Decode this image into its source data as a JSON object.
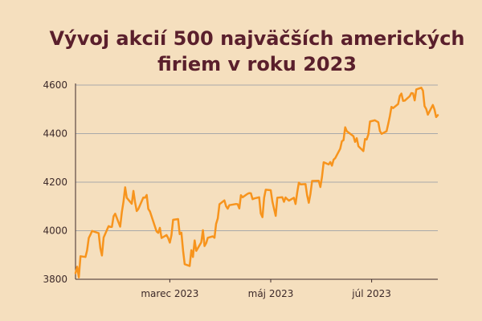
{
  "chart_data": {
    "type": "line",
    "title_lines": [
      "Vývoj akcií 500 najväčších amerických",
      "firiem v roku 2023"
    ],
    "xlabel": "",
    "ylabel": "",
    "ylim": [
      3800,
      4600
    ],
    "y_ticks": [
      3800,
      4000,
      4200,
      4400,
      4600
    ],
    "x_ticks": [
      {
        "date": "2023-03-01",
        "label": "marec 2023"
      },
      {
        "date": "2023-05-01",
        "label": "máj 2023"
      },
      {
        "date": "2023-07-01",
        "label": "júl 2023"
      }
    ],
    "xlim": [
      "2023-01-03",
      "2023-08-01"
    ],
    "grid": "horizontal",
    "line_color": "#f7941d",
    "series": [
      {
        "points": [
          [
            "2023-01-03",
            3825
          ],
          [
            "2023-01-04",
            3852
          ],
          [
            "2023-01-05",
            3808
          ],
          [
            "2023-01-06",
            3895
          ],
          [
            "2023-01-09",
            3892
          ],
          [
            "2023-01-10",
            3919
          ],
          [
            "2023-01-11",
            3970
          ],
          [
            "2023-01-12",
            3983
          ],
          [
            "2023-01-13",
            3999
          ],
          [
            "2023-01-17",
            3990
          ],
          [
            "2023-01-18",
            3928
          ],
          [
            "2023-01-19",
            3898
          ],
          [
            "2023-01-20",
            3972
          ],
          [
            "2023-01-23",
            4019
          ],
          [
            "2023-01-24",
            4016
          ],
          [
            "2023-01-25",
            4016
          ],
          [
            "2023-01-26",
            4060
          ],
          [
            "2023-01-27",
            4070
          ],
          [
            "2023-01-30",
            4017
          ],
          [
            "2023-01-31",
            4077
          ],
          [
            "2023-02-01",
            4119
          ],
          [
            "2023-02-02",
            4179
          ],
          [
            "2023-02-03",
            4136
          ],
          [
            "2023-02-06",
            4111
          ],
          [
            "2023-02-07",
            4164
          ],
          [
            "2023-02-08",
            4118
          ],
          [
            "2023-02-09",
            4081
          ],
          [
            "2023-02-10",
            4090
          ],
          [
            "2023-02-13",
            4137
          ],
          [
            "2023-02-14",
            4136
          ],
          [
            "2023-02-15",
            4147
          ],
          [
            "2023-02-16",
            4090
          ],
          [
            "2023-02-17",
            4079
          ],
          [
            "2023-02-21",
            3997
          ],
          [
            "2023-02-22",
            3991
          ],
          [
            "2023-02-23",
            4012
          ],
          [
            "2023-02-24",
            3970
          ],
          [
            "2023-02-27",
            3982
          ],
          [
            "2023-02-28",
            3970
          ],
          [
            "2023-03-01",
            3951
          ],
          [
            "2023-03-02",
            3981
          ],
          [
            "2023-03-03",
            4045
          ],
          [
            "2023-03-06",
            4048
          ],
          [
            "2023-03-07",
            3986
          ],
          [
            "2023-03-08",
            3992
          ],
          [
            "2023-03-09",
            3918
          ],
          [
            "2023-03-10",
            3862
          ],
          [
            "2023-03-13",
            3855
          ],
          [
            "2023-03-14",
            3920
          ],
          [
            "2023-03-15",
            3892
          ],
          [
            "2023-03-16",
            3960
          ],
          [
            "2023-03-17",
            3917
          ],
          [
            "2023-03-20",
            3952
          ],
          [
            "2023-03-21",
            4002
          ],
          [
            "2023-03-22",
            3937
          ],
          [
            "2023-03-23",
            3949
          ],
          [
            "2023-03-24",
            3971
          ],
          [
            "2023-03-27",
            3977
          ],
          [
            "2023-03-28",
            3971
          ],
          [
            "2023-03-29",
            4028
          ],
          [
            "2023-03-30",
            4051
          ],
          [
            "2023-03-31",
            4109
          ],
          [
            "2023-04-03",
            4125
          ],
          [
            "2023-04-04",
            4101
          ],
          [
            "2023-04-05",
            4091
          ],
          [
            "2023-04-06",
            4105
          ],
          [
            "2023-04-10",
            4110
          ],
          [
            "2023-04-11",
            4109
          ],
          [
            "2023-04-12",
            4092
          ],
          [
            "2023-04-13",
            4146
          ],
          [
            "2023-04-14",
            4138
          ],
          [
            "2023-04-17",
            4152
          ],
          [
            "2023-04-18",
            4155
          ],
          [
            "2023-04-19",
            4154
          ],
          [
            "2023-04-20",
            4130
          ],
          [
            "2023-04-21",
            4133
          ],
          [
            "2023-04-24",
            4138
          ],
          [
            "2023-04-25",
            4071
          ],
          [
            "2023-04-26",
            4056
          ],
          [
            "2023-04-27",
            4136
          ],
          [
            "2023-04-28",
            4169
          ],
          [
            "2023-05-01",
            4167
          ],
          [
            "2023-05-02",
            4120
          ],
          [
            "2023-05-03",
            4091
          ],
          [
            "2023-05-04",
            4061
          ],
          [
            "2023-05-05",
            4136
          ],
          [
            "2023-05-08",
            4138
          ],
          [
            "2023-05-09",
            4119
          ],
          [
            "2023-05-10",
            4137
          ],
          [
            "2023-05-11",
            4130
          ],
          [
            "2023-05-12",
            4124
          ],
          [
            "2023-05-15",
            4136
          ],
          [
            "2023-05-16",
            4110
          ],
          [
            "2023-05-17",
            4158
          ],
          [
            "2023-05-18",
            4198
          ],
          [
            "2023-05-19",
            4191
          ],
          [
            "2023-05-22",
            4192
          ],
          [
            "2023-05-23",
            4146
          ],
          [
            "2023-05-24",
            4115
          ],
          [
            "2023-05-25",
            4151
          ],
          [
            "2023-05-26",
            4205
          ],
          [
            "2023-05-30",
            4206
          ],
          [
            "2023-05-31",
            4180
          ],
          [
            "2023-06-01",
            4221
          ],
          [
            "2023-06-02",
            4282
          ],
          [
            "2023-06-05",
            4273
          ],
          [
            "2023-06-06",
            4283
          ],
          [
            "2023-06-07",
            4268
          ],
          [
            "2023-06-08",
            4293
          ],
          [
            "2023-06-09",
            4299
          ],
          [
            "2023-06-12",
            4338
          ],
          [
            "2023-06-13",
            4369
          ],
          [
            "2023-06-14",
            4373
          ],
          [
            "2023-06-15",
            4426
          ],
          [
            "2023-06-16",
            4410
          ],
          [
            "2023-06-20",
            4389
          ],
          [
            "2023-06-21",
            4366
          ],
          [
            "2023-06-22",
            4381
          ],
          [
            "2023-06-23",
            4348
          ],
          [
            "2023-06-26",
            4328
          ],
          [
            "2023-06-27",
            4378
          ],
          [
            "2023-06-28",
            4376
          ],
          [
            "2023-06-29",
            4396
          ],
          [
            "2023-06-30",
            4450
          ],
          [
            "2023-07-03",
            4455
          ],
          [
            "2023-07-05",
            4447
          ],
          [
            "2023-07-06",
            4411
          ],
          [
            "2023-07-07",
            4399
          ],
          [
            "2023-07-10",
            4410
          ],
          [
            "2023-07-11",
            4439
          ],
          [
            "2023-07-12",
            4472
          ],
          [
            "2023-07-13",
            4510
          ],
          [
            "2023-07-14",
            4505
          ],
          [
            "2023-07-17",
            4522
          ],
          [
            "2023-07-18",
            4555
          ],
          [
            "2023-07-19",
            4565
          ],
          [
            "2023-07-20",
            4535
          ],
          [
            "2023-07-21",
            4536
          ],
          [
            "2023-07-24",
            4554
          ],
          [
            "2023-07-25",
            4567
          ],
          [
            "2023-07-26",
            4566
          ],
          [
            "2023-07-27",
            4537
          ],
          [
            "2023-07-28",
            4582
          ],
          [
            "2023-07-31",
            4589
          ],
          [
            "2023-08-01",
            4577
          ],
          [
            "2023-08-02",
            4513
          ],
          [
            "2023-08-03",
            4501
          ],
          [
            "2023-08-04",
            4478
          ],
          [
            "2023-08-07",
            4518
          ],
          [
            "2023-08-08",
            4499
          ],
          [
            "2023-08-09",
            4468
          ],
          [
            "2023-08-10",
            4476
          ]
        ]
      }
    ]
  }
}
